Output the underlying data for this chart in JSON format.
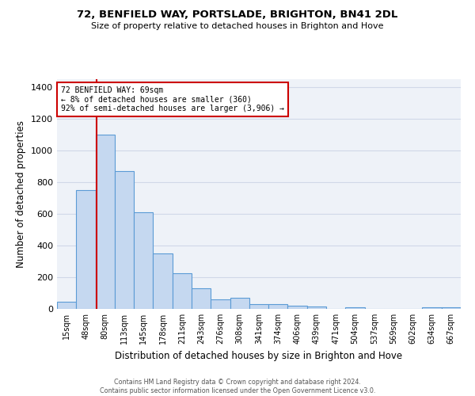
{
  "title1": "72, BENFIELD WAY, PORTSLADE, BRIGHTON, BN41 2DL",
  "title2": "Size of property relative to detached houses in Brighton and Hove",
  "xlabel": "Distribution of detached houses by size in Brighton and Hove",
  "ylabel": "Number of detached properties",
  "footnote": "Contains HM Land Registry data © Crown copyright and database right 2024.\nContains public sector information licensed under the Open Government Licence v3.0.",
  "categories": [
    "15sqm",
    "48sqm",
    "80sqm",
    "113sqm",
    "145sqm",
    "178sqm",
    "211sqm",
    "243sqm",
    "276sqm",
    "308sqm",
    "341sqm",
    "374sqm",
    "406sqm",
    "439sqm",
    "471sqm",
    "504sqm",
    "537sqm",
    "569sqm",
    "602sqm",
    "634sqm",
    "667sqm"
  ],
  "values": [
    47,
    750,
    1100,
    870,
    610,
    348,
    225,
    130,
    60,
    68,
    32,
    28,
    20,
    13,
    0,
    10,
    0,
    0,
    0,
    10,
    10
  ],
  "bar_color": "#c5d8f0",
  "bar_edge_color": "#5b9bd5",
  "annotation_text_line1": "72 BENFIELD WAY: 69sqm",
  "annotation_text_line2": "← 8% of detached houses are smaller (360)",
  "annotation_text_line3": "92% of semi-detached houses are larger (3,906) →",
  "annotation_box_color": "#ffffff",
  "annotation_box_edge_color": "#cc0000",
  "red_line_x": 1.55,
  "ylim": [
    0,
    1450
  ],
  "yticks": [
    0,
    200,
    400,
    600,
    800,
    1000,
    1200,
    1400
  ],
  "grid_color": "#d0d8e8",
  "background_color": "#eef2f8",
  "footnote_color": "#555555"
}
